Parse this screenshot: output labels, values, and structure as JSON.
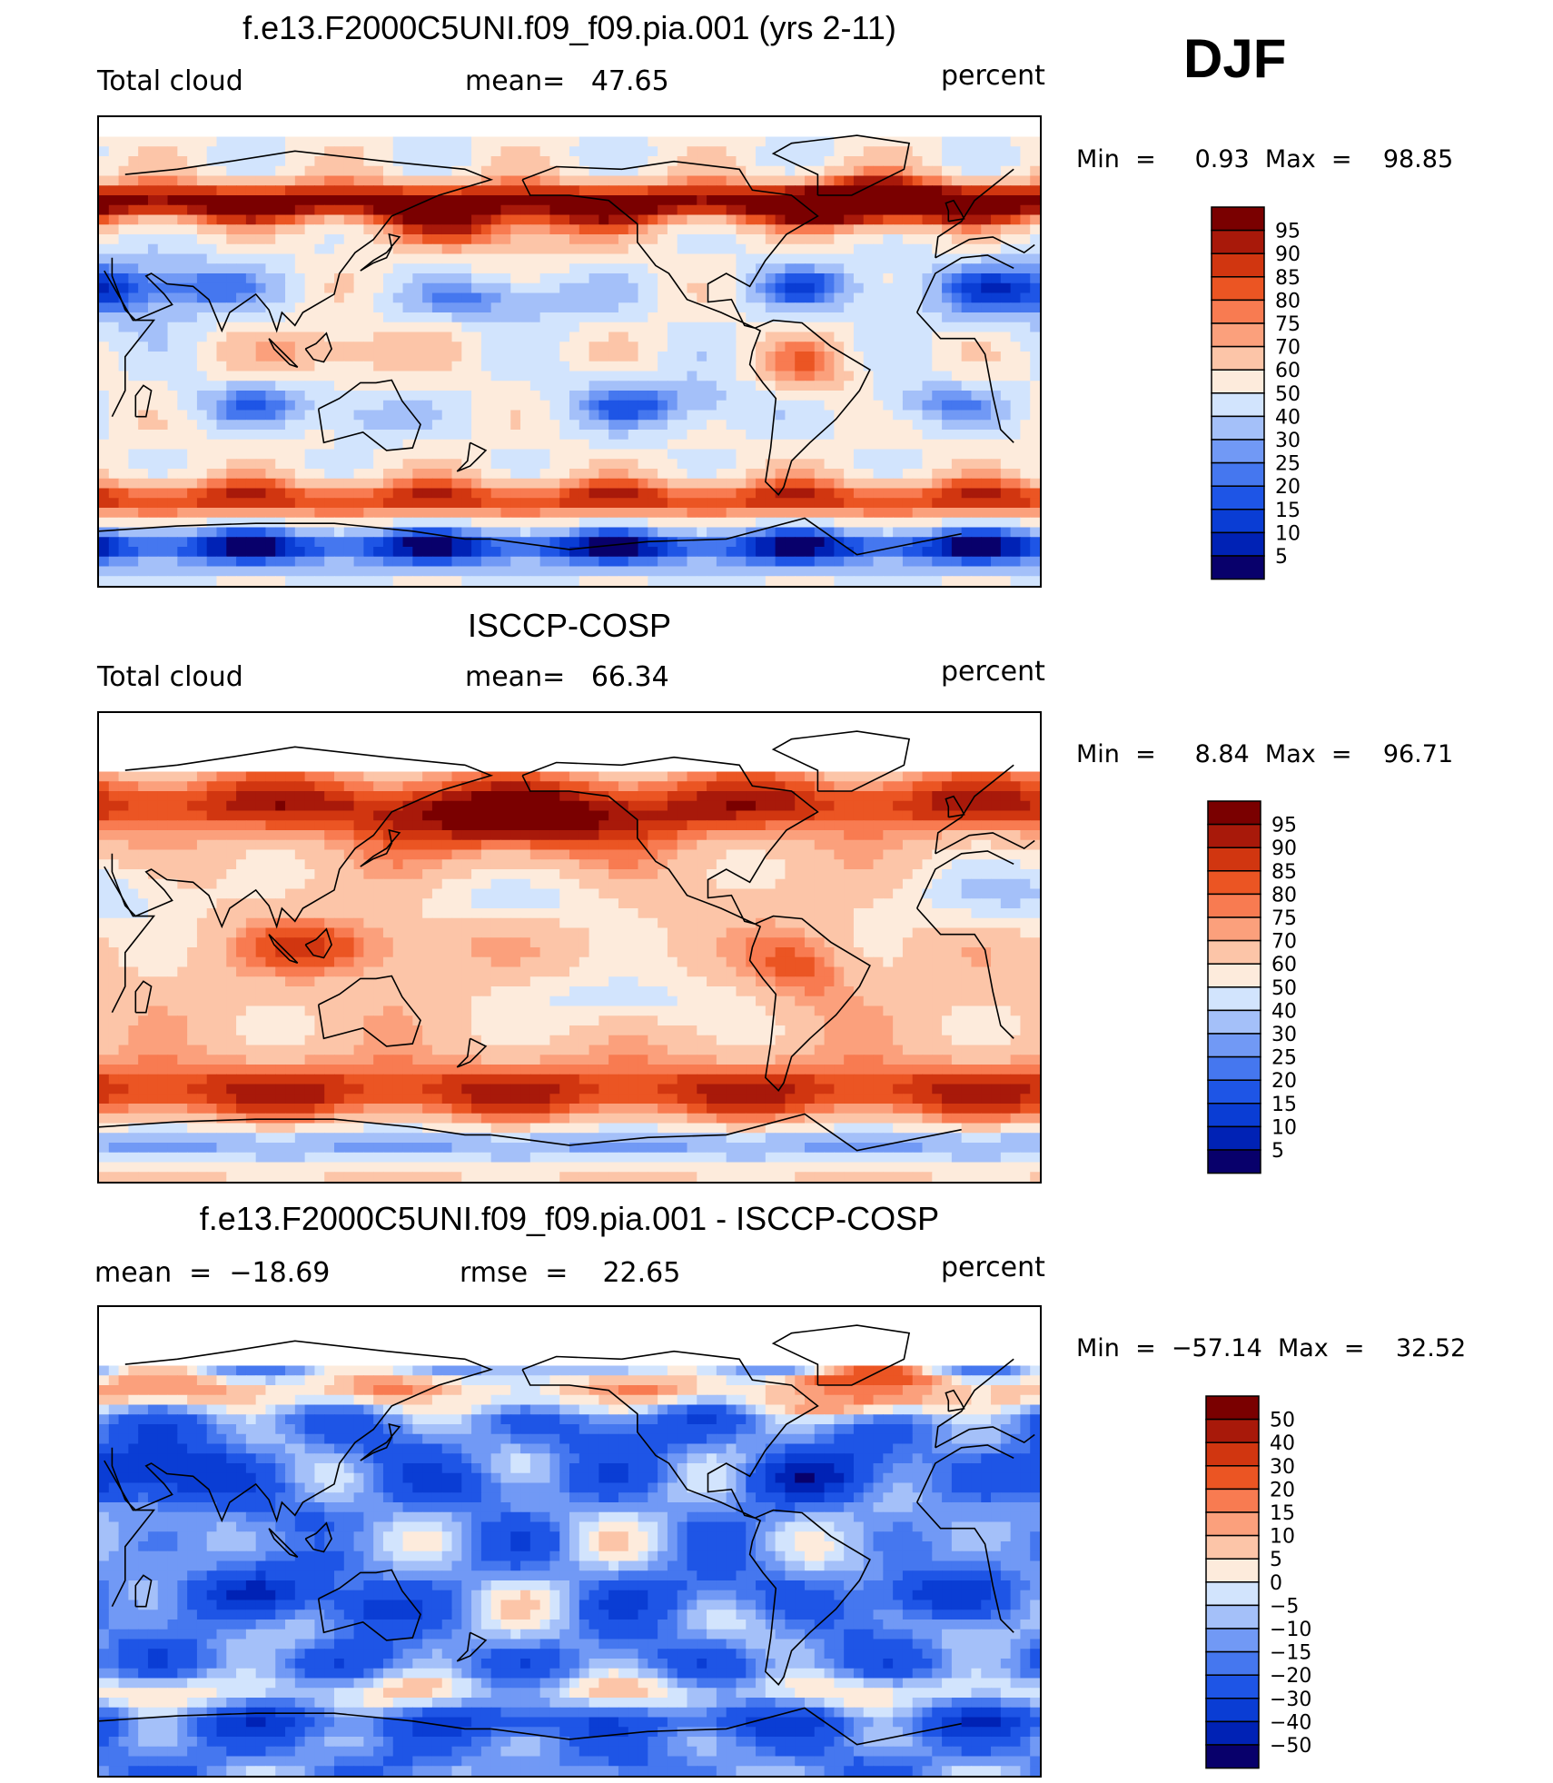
{
  "season": "DJF",
  "colors": {
    "abs": [
      "#08006b",
      "#0022b5",
      "#0a3dd4",
      "#1e55e6",
      "#4577ef",
      "#7199f5",
      "#a4c0f9",
      "#d2e4fd",
      "#fdebdc",
      "#fcc5a8",
      "#fba07c",
      "#f87b51",
      "#eb5523",
      "#d13610",
      "#a8190a",
      "#7a0000"
    ],
    "diff": [
      "#08006b",
      "#0022b5",
      "#0a3dd4",
      "#1e55e6",
      "#4577ef",
      "#7199f5",
      "#a4c0f9",
      "#d2e4fd",
      "#fdebdc",
      "#fcc5a8",
      "#fba07c",
      "#f87b51",
      "#eb5523",
      "#d13610",
      "#a8190a",
      "#7a0000"
    ]
  },
  "panels": [
    {
      "title": "f.e13.F2000C5UNI.f09_f09.pia.001 (yrs 2-11)",
      "left_label": "Total cloud",
      "mid_label": "mean=   47.65",
      "units": "percent",
      "minmax": "Min  =     0.93  Max  =    98.85"
    },
    {
      "title": "ISCCP-COSP",
      "left_label": "Total cloud",
      "mid_label": "mean=   66.34",
      "units": "percent",
      "minmax": "Min  =     8.84  Max  =    96.71"
    },
    {
      "title": "f.e13.F2000C5UNI.f09_f09.pia.001 - ISCCP-COSP",
      "left_label": "mean  =  −18.69",
      "mid_label": "rmse  =    22.65",
      "units": "percent",
      "minmax": "Min  =  −57.14  Max  =    32.52"
    }
  ],
  "chart_data": [
    {
      "type": "heatmap",
      "title": "f.e13.F2000C5UNI.f09_f09.pia.001 (yrs 2-11)",
      "variable": "Total cloud",
      "units": "percent",
      "season": "DJF",
      "mean": 47.65,
      "min": 0.93,
      "max": 98.85,
      "colorbar_levels": [
        5,
        10,
        15,
        20,
        25,
        30,
        40,
        50,
        60,
        70,
        75,
        80,
        85,
        90,
        95
      ]
    },
    {
      "type": "heatmap",
      "title": "ISCCP-COSP",
      "variable": "Total cloud",
      "units": "percent",
      "season": "DJF",
      "mean": 66.34,
      "min": 8.84,
      "max": 96.71,
      "colorbar_levels": [
        5,
        10,
        15,
        20,
        25,
        30,
        40,
        50,
        60,
        70,
        75,
        80,
        85,
        90,
        95
      ]
    },
    {
      "type": "heatmap",
      "title": "f.e13.F2000C5UNI.f09_f09.pia.001 - ISCCP-COSP",
      "units": "percent",
      "season": "DJF",
      "mean": -18.69,
      "rmse": 22.65,
      "min": -57.14,
      "max": 32.52,
      "colorbar_levels": [
        -50,
        -40,
        -30,
        -20,
        -15,
        -10,
        -5,
        0,
        5,
        10,
        15,
        20,
        30,
        40,
        50
      ]
    }
  ],
  "colorbar_labels": {
    "abs": [
      "95",
      "90",
      "85",
      "80",
      "75",
      "70",
      "60",
      "50",
      "40",
      "30",
      "25",
      "20",
      "15",
      "10",
      "5"
    ],
    "diff": [
      "50",
      "40",
      "30",
      "20",
      "15",
      "10",
      "5",
      "0",
      "−5",
      "−10",
      "−15",
      "−20",
      "−30",
      "−40",
      "−50"
    ]
  }
}
